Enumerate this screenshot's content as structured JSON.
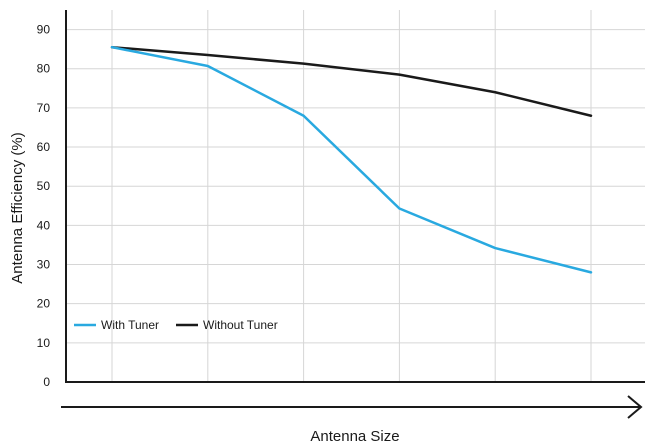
{
  "chart_data": {
    "type": "line",
    "xlabel": "Antenna Size",
    "ylabel": "Antenna Efficiency (%)",
    "ylim": [
      0,
      95
    ],
    "yticks": [
      0,
      10,
      20,
      30,
      40,
      50,
      60,
      70,
      80,
      90
    ],
    "x": [
      1,
      2,
      3,
      4,
      5,
      6
    ],
    "x_tick_labels_shown": false,
    "grid": true,
    "legend_position": "bottom-left",
    "series": [
      {
        "name": "With Tuner",
        "color": "#29a9e0",
        "values": [
          85.5,
          80.7,
          68,
          44.3,
          34.2,
          28
        ]
      },
      {
        "name": "Without Tuner",
        "color": "#1a1a1a",
        "values": [
          85.5,
          83.5,
          81.3,
          78.5,
          74,
          68
        ]
      }
    ]
  }
}
